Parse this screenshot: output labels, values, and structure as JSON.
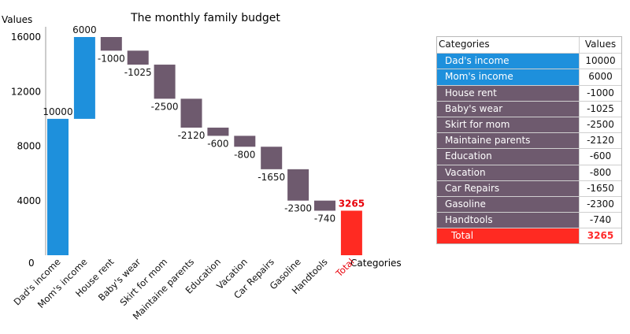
{
  "chart_data": {
    "type": "waterfall",
    "title": "The monthly family budget",
    "ylabel": "Values",
    "xlabel": "Categories",
    "ylim": [
      0,
      16000
    ],
    "yticks": [
      0,
      4000,
      8000,
      12000,
      16000
    ],
    "categories": [
      "Dad's income",
      "Mom's income",
      "House rent",
      "Baby's wear",
      "Skirt for mom",
      "Maintaine parents",
      "Education",
      "Vacation",
      "Car Repairs",
      "Gasoline",
      "Handtools",
      "Total"
    ],
    "values": [
      10000,
      6000,
      -1000,
      -1025,
      -2500,
      -2120,
      -600,
      -800,
      -1650,
      -2300,
      -740,
      3265
    ],
    "colors": {
      "income": "#1e90dc",
      "expense": "#6e5a6e",
      "total": "#ff2a22",
      "total_label": "#e8000a"
    }
  },
  "table": {
    "header": {
      "category": "Categories",
      "value": "Values"
    },
    "rows": [
      {
        "category": "Dad's income",
        "value": "10000"
      },
      {
        "category": "Mom's income",
        "value": "6000"
      },
      {
        "category": "House rent",
        "value": "-1000"
      },
      {
        "category": "Baby's wear",
        "value": "-1025"
      },
      {
        "category": "Skirt for mom",
        "value": "-2500"
      },
      {
        "category": "Maintaine parents",
        "value": "-2120"
      },
      {
        "category": "Education",
        "value": "-600"
      },
      {
        "category": "Vacation",
        "value": "-800"
      },
      {
        "category": "Car Repairs",
        "value": "-1650"
      },
      {
        "category": "Gasoline",
        "value": "-2300"
      },
      {
        "category": "Handtools",
        "value": "-740"
      },
      {
        "category": "Total",
        "value": "3265"
      }
    ]
  }
}
